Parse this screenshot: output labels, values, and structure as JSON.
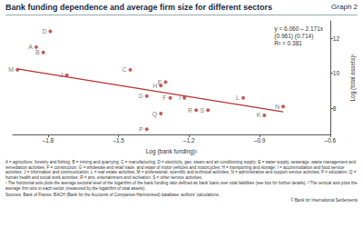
{
  "chart_data": {
    "type": "scatter",
    "title": "Bank funding dependence and average firm size for different sectors",
    "subtitle": "Graph 2",
    "x_label": "Log (bank funding)¹",
    "y_label": "Log (total assets)²",
    "color": "#b8312f",
    "labels": [
      "A",
      "B",
      "C",
      "D",
      "E",
      "F",
      "G",
      "H",
      "I",
      "J",
      "K",
      "L",
      "M",
      "N",
      "P",
      "Q",
      "R",
      "S"
    ],
    "x": [
      -1.85,
      -1.82,
      -1.45,
      -1.79,
      -1.3,
      -1.28,
      -1.38,
      -1.32,
      -1.22,
      -1.72,
      -0.88,
      -0.97,
      -1.93,
      -0.8,
      -1.38,
      -1.32,
      -1.17,
      -1.12
    ],
    "values": [
      11.5,
      11.2,
      10.2,
      12.4,
      9.5,
      8.6,
      8.7,
      9.3,
      8.6,
      9.9,
      7.6,
      8.6,
      10.2,
      8.1,
      6.8,
      7.7,
      7.9,
      7.9
    ],
    "fit_line": {
      "x": [
        -1.93,
        -0.8
      ],
      "values": [
        10.25,
        7.8
      ],
      "color": "#b8312f"
    },
    "annotation": [
      "y = 6.060 – 2.171x",
      "(0.961) (0.714)",
      "R² = 0.381"
    ],
    "xlim": [
      -1.95,
      -0.6
    ],
    "xticks": [
      {
        "value": -1.8,
        "label": "–1.8"
      },
      {
        "value": -1.5,
        "label": "–1.5"
      },
      {
        "value": -1.2,
        "label": "–1.2"
      },
      {
        "value": -0.9,
        "label": "–0.9"
      },
      {
        "value": -0.6,
        "label": "–0.6"
      }
    ],
    "ylim": [
      6.5,
      13
    ],
    "yticks": [
      8,
      10,
      12
    ],
    "grid": false,
    "legend_text": "A = agriculture, forestry and fishing; B = mining and quarrying; C = manufacturing; D = electricity, gas, steam and air-conditioning supply; E = water supply, sewerage, waste management and remediation activities; F = construction; G = wholesale and retail trade, and repair of motor vehicles and motorcycles; H = transporting and storage; I = accommodation and food service activities; J = information and communication; L = real estate activities; M = professional, scientific and technical activities; N = administrative and support service activities; P = education; Q = human health and social work activities; R = arts, entertainment and recreation; S = other service activities.",
    "footnotes": [
      "¹ The horizontal axis plots the average sectoral level of the logarithm of the bank funding ratio defined as bank loans over total liabilities (see box for further details).  ² The vertical axis plots the average firm size in each sector (measured by the logarithm of total assets)."
    ],
    "source": "Sources: Bank of France, BACH (Bank for the Accounts of Companies Harmonised) database; authors' calculations.",
    "copyright": "© Bank for International Settlements"
  }
}
